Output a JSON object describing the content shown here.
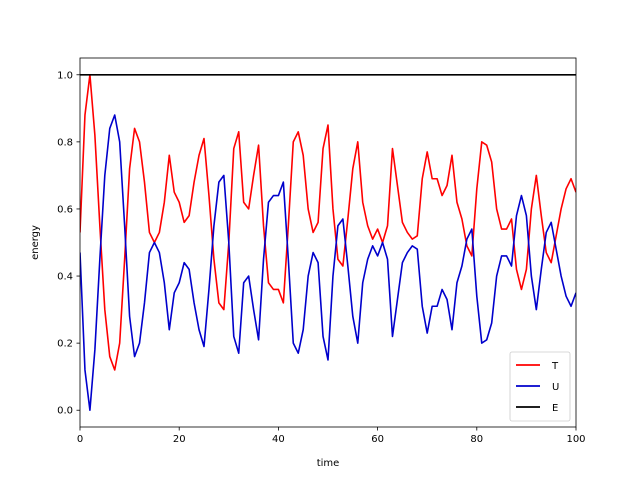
{
  "chart_data": {
    "type": "line",
    "title": "",
    "xlabel": "time",
    "ylabel": "energy",
    "xlim": [
      0,
      100
    ],
    "ylim": [
      -0.05,
      1.05
    ],
    "xticks": [
      "0",
      "20",
      "40",
      "60",
      "80",
      "100"
    ],
    "yticks": [
      "0.0",
      "0.2",
      "0.4",
      "0.6",
      "0.8",
      "1.0"
    ],
    "grid": false,
    "legend_position": "lower-right",
    "series": [
      {
        "name": "T",
        "color": "#ff0000",
        "x": [
          0,
          1,
          2,
          3,
          4,
          5,
          6,
          7,
          8,
          9,
          10,
          11,
          12,
          13,
          14,
          15,
          16,
          17,
          18,
          19,
          20,
          21,
          22,
          23,
          24,
          25,
          26,
          27,
          28,
          29,
          30,
          31,
          32,
          33,
          34,
          35,
          36,
          37,
          38,
          39,
          40,
          41,
          42,
          43,
          44,
          45,
          46,
          47,
          48,
          49,
          50,
          51,
          52,
          53,
          54,
          55,
          56,
          57,
          58,
          59,
          60,
          61,
          62,
          63,
          64,
          65,
          66,
          67,
          68,
          69,
          70,
          71,
          72,
          73,
          74,
          75,
          76,
          77,
          78,
          79,
          80,
          81,
          82,
          83,
          84,
          85,
          86,
          87,
          88,
          89,
          90,
          91,
          92,
          93,
          94,
          95,
          96,
          97,
          98,
          99,
          100
        ],
        "values": [
          0.53,
          0.88,
          1.0,
          0.82,
          0.55,
          0.3,
          0.16,
          0.12,
          0.2,
          0.45,
          0.72,
          0.84,
          0.8,
          0.68,
          0.53,
          0.5,
          0.53,
          0.62,
          0.76,
          0.65,
          0.62,
          0.56,
          0.58,
          0.68,
          0.76,
          0.81,
          0.64,
          0.45,
          0.32,
          0.3,
          0.5,
          0.78,
          0.83,
          0.62,
          0.6,
          0.7,
          0.79,
          0.55,
          0.38,
          0.36,
          0.36,
          0.32,
          0.55,
          0.8,
          0.83,
          0.76,
          0.6,
          0.53,
          0.56,
          0.78,
          0.85,
          0.6,
          0.45,
          0.43,
          0.57,
          0.72,
          0.8,
          0.62,
          0.55,
          0.51,
          0.54,
          0.5,
          0.55,
          0.78,
          0.67,
          0.56,
          0.53,
          0.51,
          0.52,
          0.69,
          0.77,
          0.69,
          0.69,
          0.64,
          0.67,
          0.76,
          0.62,
          0.57,
          0.49,
          0.46,
          0.66,
          0.8,
          0.79,
          0.74,
          0.6,
          0.54,
          0.54,
          0.57,
          0.42,
          0.36,
          0.42,
          0.6,
          0.7,
          0.58,
          0.47,
          0.44,
          0.52,
          0.6,
          0.66,
          0.69,
          0.65
        ]
      },
      {
        "name": "U",
        "color": "#0000cc",
        "x": [
          0,
          1,
          2,
          3,
          4,
          5,
          6,
          7,
          8,
          9,
          10,
          11,
          12,
          13,
          14,
          15,
          16,
          17,
          18,
          19,
          20,
          21,
          22,
          23,
          24,
          25,
          26,
          27,
          28,
          29,
          30,
          31,
          32,
          33,
          34,
          35,
          36,
          37,
          38,
          39,
          40,
          41,
          42,
          43,
          44,
          45,
          46,
          47,
          48,
          49,
          50,
          51,
          52,
          53,
          54,
          55,
          56,
          57,
          58,
          59,
          60,
          61,
          62,
          63,
          64,
          65,
          66,
          67,
          68,
          69,
          70,
          71,
          72,
          73,
          74,
          75,
          76,
          77,
          78,
          79,
          80,
          81,
          82,
          83,
          84,
          85,
          86,
          87,
          88,
          89,
          90,
          91,
          92,
          93,
          94,
          95,
          96,
          97,
          98,
          99,
          100
        ],
        "values": [
          0.47,
          0.12,
          0.0,
          0.18,
          0.45,
          0.7,
          0.84,
          0.88,
          0.8,
          0.55,
          0.28,
          0.16,
          0.2,
          0.32,
          0.47,
          0.5,
          0.47,
          0.38,
          0.24,
          0.35,
          0.38,
          0.44,
          0.42,
          0.32,
          0.24,
          0.19,
          0.36,
          0.55,
          0.68,
          0.7,
          0.5,
          0.22,
          0.17,
          0.38,
          0.4,
          0.3,
          0.21,
          0.45,
          0.62,
          0.64,
          0.64,
          0.68,
          0.45,
          0.2,
          0.17,
          0.24,
          0.4,
          0.47,
          0.44,
          0.22,
          0.15,
          0.4,
          0.55,
          0.57,
          0.43,
          0.28,
          0.2,
          0.38,
          0.45,
          0.49,
          0.46,
          0.5,
          0.45,
          0.22,
          0.33,
          0.44,
          0.47,
          0.49,
          0.48,
          0.31,
          0.23,
          0.31,
          0.31,
          0.36,
          0.33,
          0.24,
          0.38,
          0.43,
          0.51,
          0.54,
          0.34,
          0.2,
          0.21,
          0.26,
          0.4,
          0.46,
          0.46,
          0.43,
          0.58,
          0.64,
          0.58,
          0.4,
          0.3,
          0.42,
          0.53,
          0.56,
          0.48,
          0.4,
          0.34,
          0.31,
          0.35
        ]
      },
      {
        "name": "E",
        "color": "#000000",
        "x": [
          0,
          100
        ],
        "values": [
          1.0,
          1.0
        ]
      }
    ]
  }
}
